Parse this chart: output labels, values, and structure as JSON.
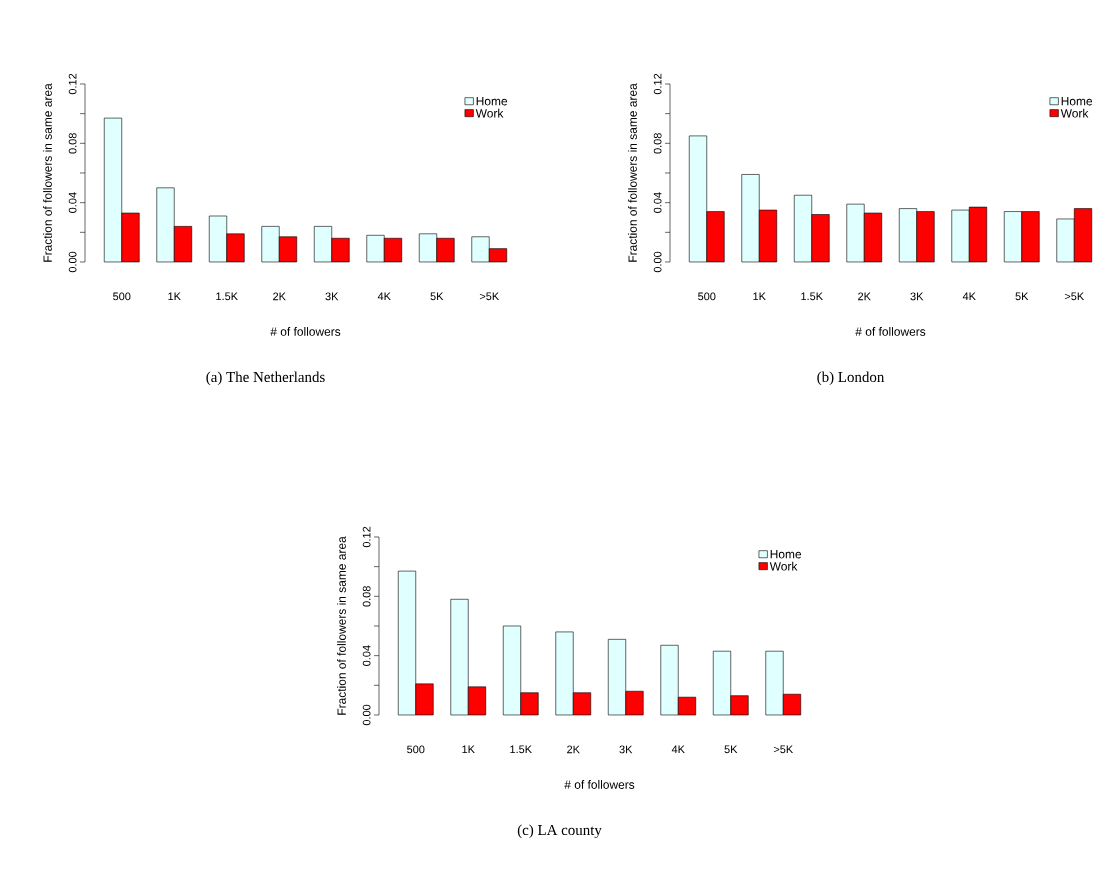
{
  "chart_data": [
    {
      "type": "bar",
      "title": "(a) The Netherlands",
      "xlabel": "# of followers",
      "ylabel": "Fraction of followers in same area",
      "categories": [
        "500",
        "1K",
        "1.5K",
        "2K",
        "3K",
        "4K",
        "5K",
        ">5K"
      ],
      "series": [
        {
          "name": "Home",
          "color": "#e0ffff",
          "values": [
            0.097,
            0.05,
            0.031,
            0.024,
            0.024,
            0.018,
            0.019,
            0.017
          ]
        },
        {
          "name": "Work",
          "color": "#ff0000",
          "values": [
            0.033,
            0.024,
            0.019,
            0.017,
            0.016,
            0.016,
            0.016,
            0.009
          ]
        }
      ],
      "ylim": [
        0,
        0.12
      ],
      "yticks": [
        {
          "value": 0,
          "label": "0.00"
        },
        {
          "value": 0.02,
          "label": null
        },
        {
          "value": 0.04,
          "label": "0.04"
        },
        {
          "value": 0.06,
          "label": null
        },
        {
          "value": 0.08,
          "label": "0.08"
        },
        {
          "value": 0.1,
          "label": null
        },
        {
          "value": 0.12,
          "label": "0.12"
        }
      ],
      "legend": "top right"
    },
    {
      "type": "bar",
      "title": "(b) London",
      "xlabel": "# of followers",
      "ylabel": "Fraction of followers in same area",
      "categories": [
        "500",
        "1K",
        "1.5K",
        "2K",
        "3K",
        "4K",
        "5K",
        ">5K"
      ],
      "series": [
        {
          "name": "Home",
          "color": "#e0ffff",
          "values": [
            0.085,
            0.059,
            0.045,
            0.039,
            0.036,
            0.035,
            0.034,
            0.029
          ]
        },
        {
          "name": "Work",
          "color": "#ff0000",
          "values": [
            0.034,
            0.035,
            0.032,
            0.033,
            0.034,
            0.037,
            0.034,
            0.036
          ]
        }
      ],
      "ylim": [
        0,
        0.12
      ],
      "yticks": [
        {
          "value": 0,
          "label": "0.00"
        },
        {
          "value": 0.02,
          "label": null
        },
        {
          "value": 0.04,
          "label": "0.04"
        },
        {
          "value": 0.06,
          "label": null
        },
        {
          "value": 0.08,
          "label": "0.08"
        },
        {
          "value": 0.1,
          "label": null
        },
        {
          "value": 0.12,
          "label": "0.12"
        }
      ],
      "legend": "top right"
    },
    {
      "type": "bar",
      "title": "(c) LA county",
      "xlabel": "# of followers",
      "ylabel": "Fraction of followers in same area",
      "categories": [
        "500",
        "1K",
        "1.5K",
        "2K",
        "3K",
        "4K",
        "5K",
        ">5K"
      ],
      "series": [
        {
          "name": "Home",
          "color": "#e0ffff",
          "values": [
            0.097,
            0.078,
            0.06,
            0.056,
            0.051,
            0.047,
            0.043,
            0.043
          ]
        },
        {
          "name": "Work",
          "color": "#ff0000",
          "values": [
            0.021,
            0.019,
            0.015,
            0.015,
            0.016,
            0.012,
            0.013,
            0.014
          ]
        }
      ],
      "ylim": [
        0,
        0.12
      ],
      "yticks": [
        {
          "value": 0,
          "label": "0.00"
        },
        {
          "value": 0.02,
          "label": null
        },
        {
          "value": 0.04,
          "label": "0.04"
        },
        {
          "value": 0.06,
          "label": null
        },
        {
          "value": 0.08,
          "label": "0.08"
        },
        {
          "value": 0.1,
          "label": null
        },
        {
          "value": 0.12,
          "label": "0.12"
        }
      ],
      "legend": "top right"
    }
  ]
}
